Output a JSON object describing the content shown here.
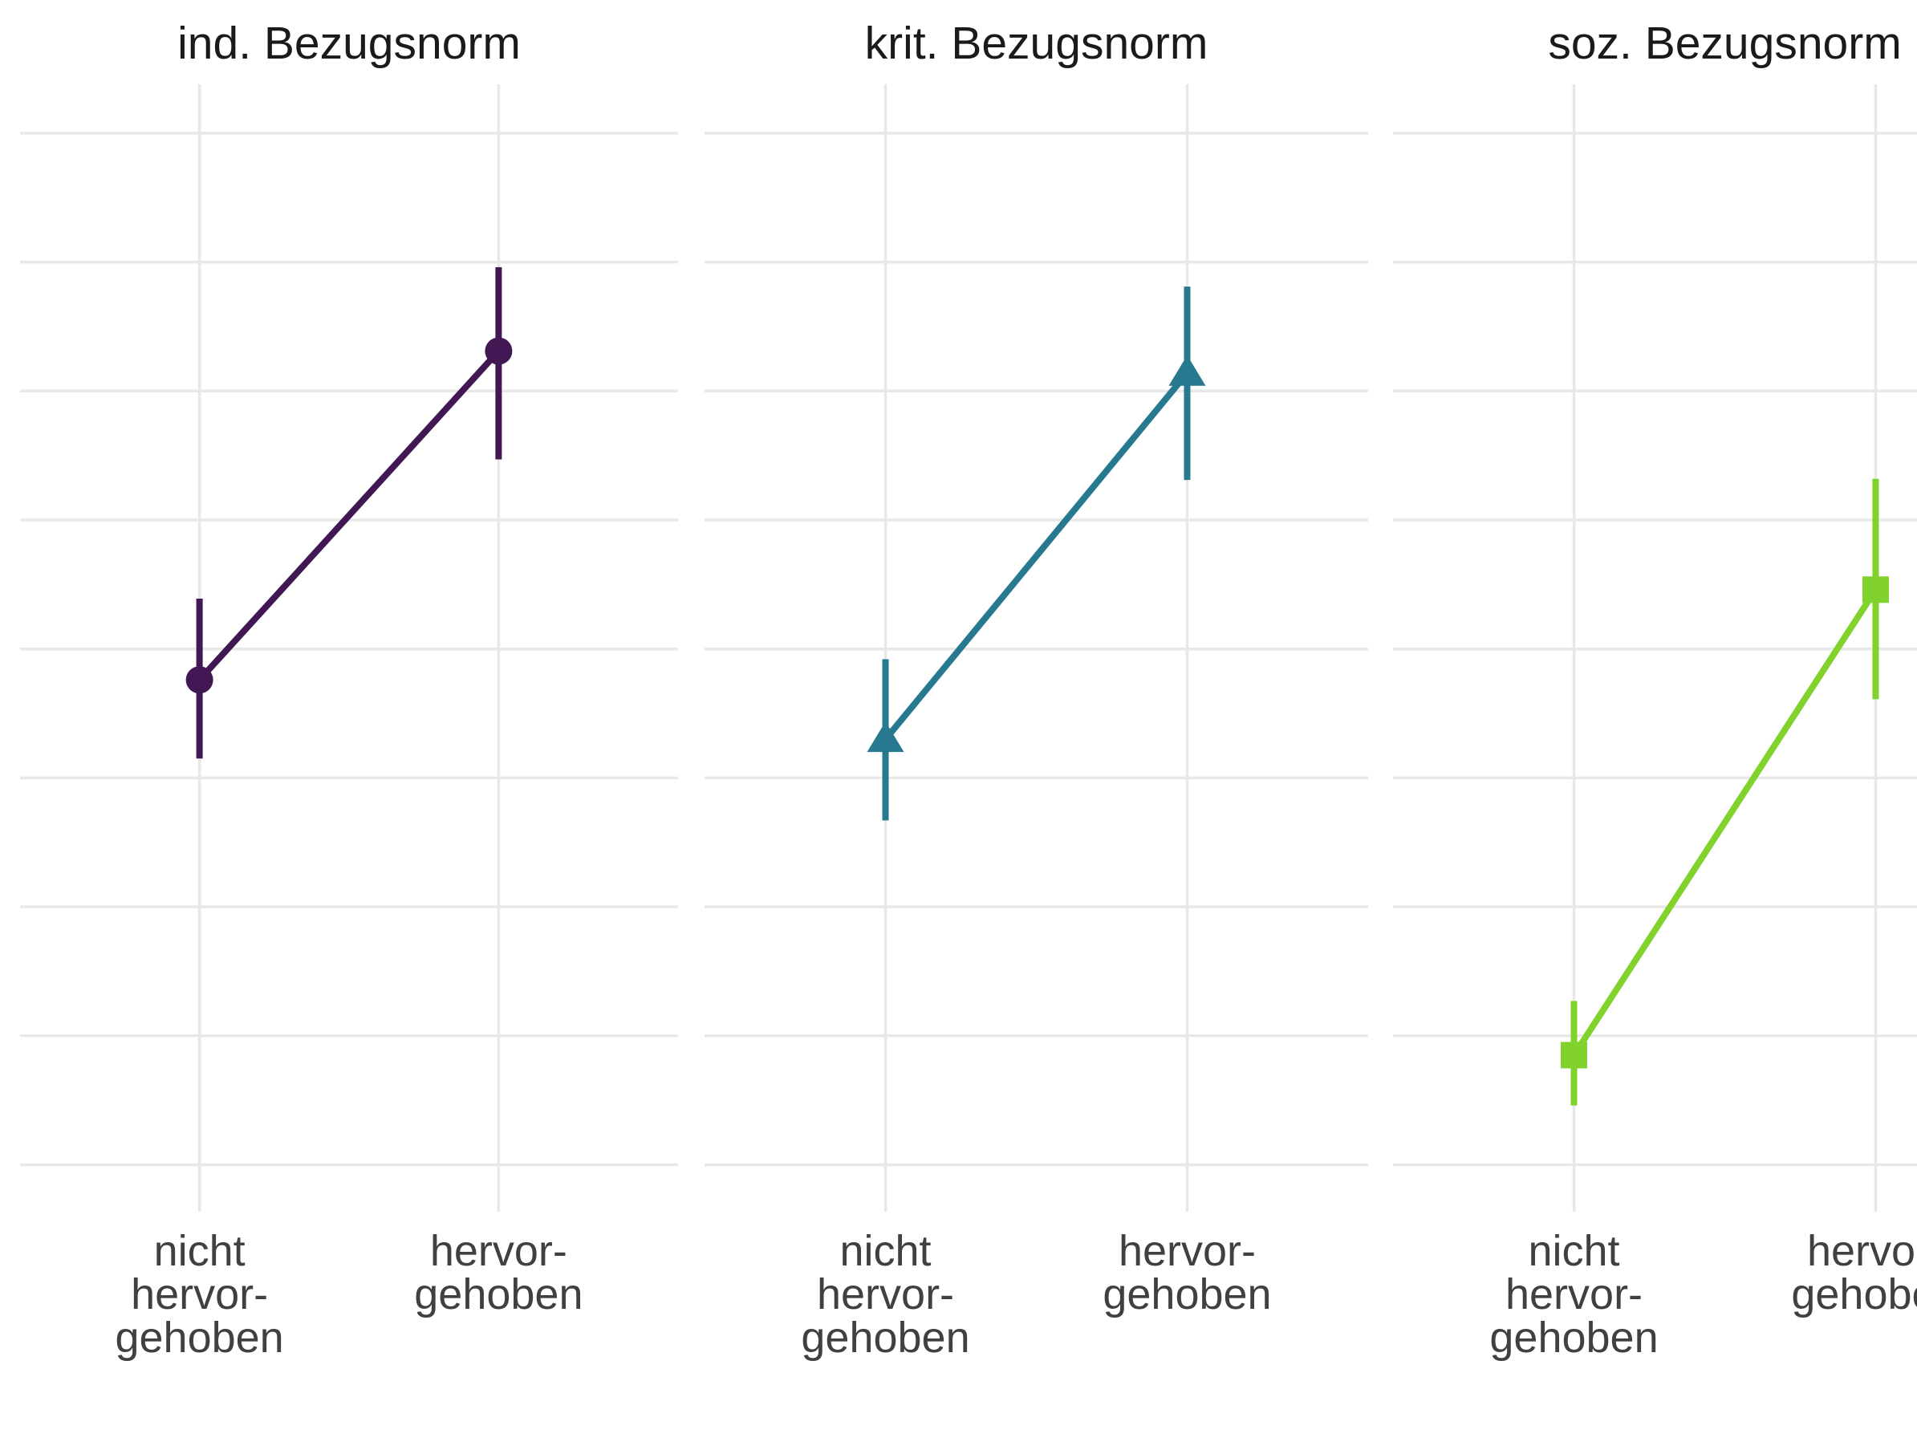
{
  "chart_data": {
    "type": "line",
    "chart_kind": "faceted point-range plot (group means with vertical error bars, connected by a line)",
    "title": "",
    "xlabel": "",
    "ylabel": "",
    "y_axis": {
      "tick_labels_visible": false,
      "gridline_count": 9,
      "note": "No y-axis tick labels are shown in the image; y values below are estimated in gridline units counted upward from the bottom gridline (one unit = one gridline spacing).",
      "ylim_units": [
        0,
        9
      ]
    },
    "x_categories": [
      {
        "id": "nicht-hervorgehoben",
        "label_lines": [
          "nicht",
          "hervor-",
          "gehoben"
        ]
      },
      {
        "id": "hervorgehoben",
        "label_lines": [
          "hervor-",
          "gehoben"
        ]
      }
    ],
    "legend": {
      "visible": false
    },
    "grid": "on",
    "facets": [
      {
        "title": "ind. Bezugsnorm",
        "marker": "circle",
        "color": "#411754",
        "points": [
          {
            "x": "nicht hervorgehoben",
            "y": 3.76,
            "ci_low": 3.15,
            "ci_high": 4.39
          },
          {
            "x": "hervorgehoben",
            "y": 6.31,
            "ci_low": 5.47,
            "ci_high": 6.96
          }
        ]
      },
      {
        "title": "krit. Bezugsnorm",
        "marker": "triangle",
        "color": "#26798E",
        "points": [
          {
            "x": "nicht hervorgehoben",
            "y": 3.3,
            "ci_low": 2.67,
            "ci_high": 3.92
          },
          {
            "x": "hervorgehoben",
            "y": 6.14,
            "ci_low": 5.31,
            "ci_high": 6.81
          }
        ]
      },
      {
        "title": "soz. Bezugsnorm",
        "marker": "square",
        "color": "#82D22E",
        "points": [
          {
            "x": "nicht hervorgehoben",
            "y": 0.85,
            "ci_low": 0.46,
            "ci_high": 1.27
          },
          {
            "x": "hervorgehoben",
            "y": 4.46,
            "ci_low": 3.61,
            "ci_high": 5.32
          }
        ]
      }
    ],
    "colors": {
      "gridline": "#E8E8E8",
      "facet_title_text": "#1A1A1A",
      "axis_text": "#404040",
      "background": "#FFFFFF"
    }
  }
}
